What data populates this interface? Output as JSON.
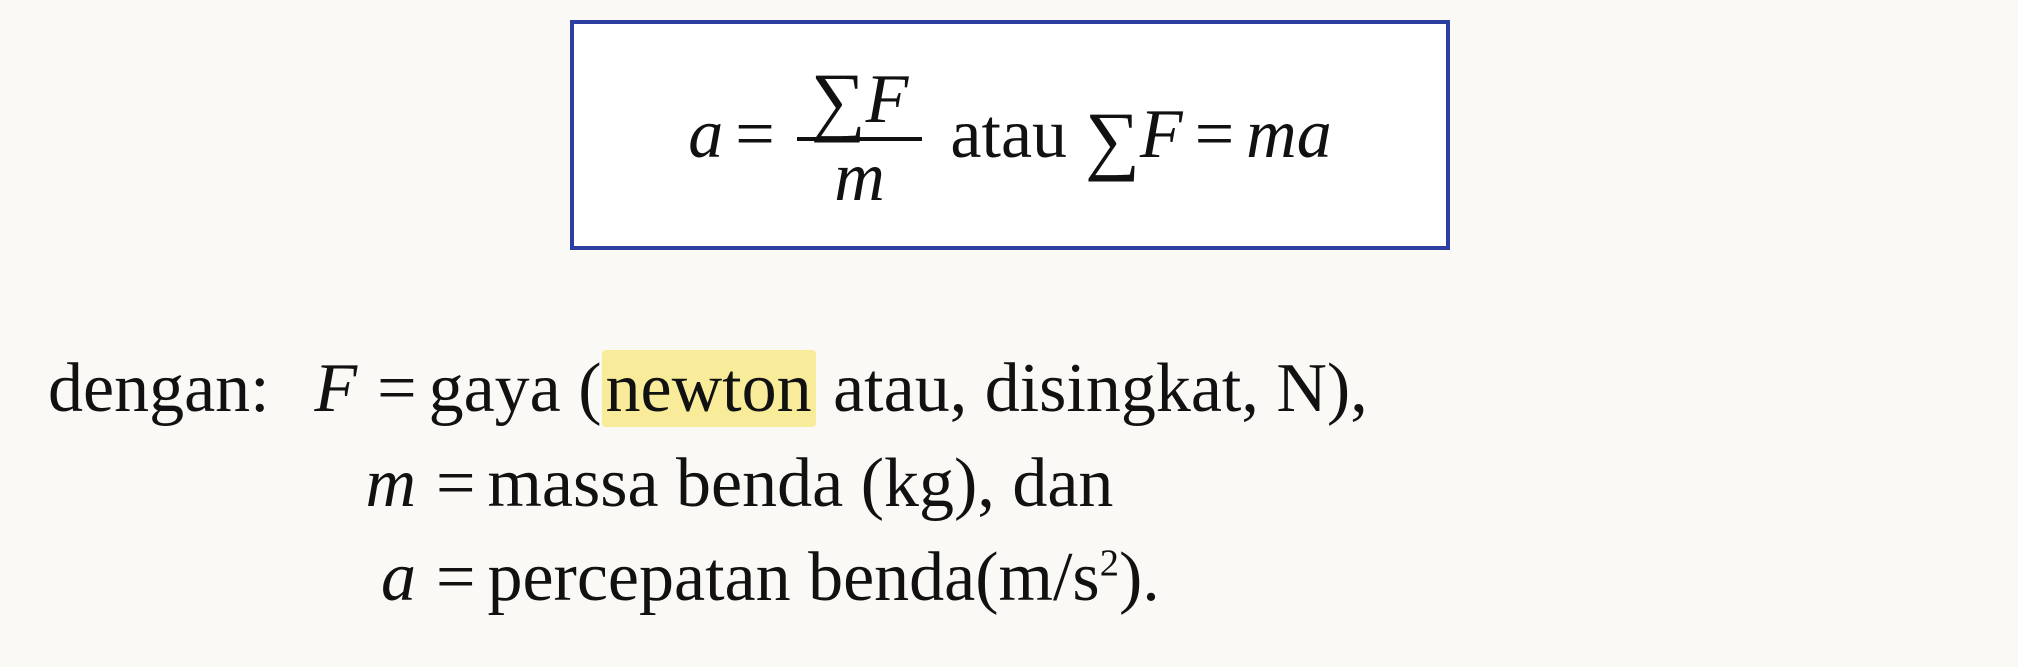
{
  "formula": {
    "lhs_var": "a",
    "equals": "=",
    "numerator_sigma": "∑",
    "numerator_var": "F",
    "denominator_var": "m",
    "conjunction": "atau",
    "rhs_sigma": "∑",
    "rhs_force_var": "F",
    "rhs_equals": "=",
    "rhs_mass_var": "m",
    "rhs_accel_var": "a",
    "box_border_color": "#2c3fa0",
    "background_color": "#ffffff",
    "text_color": "#111111",
    "font_size_pt": 52,
    "font_style": "italic-serif"
  },
  "definitions": {
    "lead_word": "dengan: ",
    "rows": [
      {
        "symbol": "F",
        "equals": "=",
        "pre": "gaya (",
        "highlight": "newton",
        "post": " atau, disingkat, N),"
      },
      {
        "symbol": "m",
        "equals": "=",
        "text": "massa benda (kg), dan"
      },
      {
        "symbol": "a",
        "equals": "=",
        "text_pre": "percepatan benda(m/s",
        "superscript": "2",
        "text_post": ")."
      }
    ],
    "highlight_color": "#f8ec9b",
    "font_size_pt": 52,
    "text_color": "#111111"
  },
  "page_background": "#faf9f5"
}
